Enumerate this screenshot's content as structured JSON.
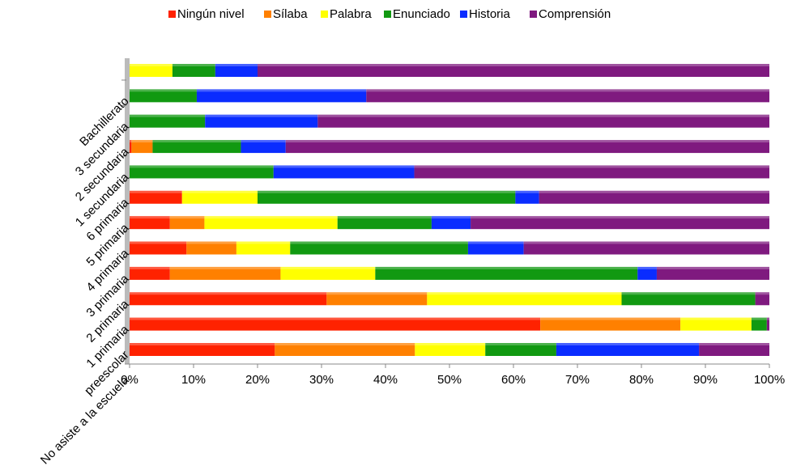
{
  "chart_data": {
    "type": "stacked-bar-horizontal",
    "categories": [
      "No asiste a la escuela",
      "preescolar",
      "1 primaria",
      "2 primaria",
      "3 primaria",
      "4 primaria",
      "5 primaria",
      "6 primaria",
      "1 secundaria",
      "2 secundaria",
      "3 secundaria",
      "Bachillerato"
    ],
    "series": [
      {
        "name": "Ningún nivel",
        "color": "#ff2200",
        "values": [
          22.7,
          64.2,
          30.8,
          6.3,
          8.9,
          6.3,
          8.2,
          0,
          0.3,
          0,
          0,
          0
        ]
      },
      {
        "name": "Sílaba",
        "color": "#ff8000",
        "values": [
          21.9,
          21.9,
          15.7,
          17.3,
          7.8,
          5.4,
          0,
          0,
          3.3,
          0,
          0,
          0
        ]
      },
      {
        "name": "Palabra",
        "color": "#ffff00",
        "values": [
          11.0,
          11.1,
          30.4,
          14.8,
          8.4,
          20.8,
          11.8,
          0,
          0,
          0,
          0,
          6.7
        ]
      },
      {
        "name": "Enunciado",
        "color": "#119911",
        "values": [
          11.1,
          2.4,
          20.9,
          41.0,
          27.8,
          14.7,
          40.3,
          22.5,
          13.8,
          11.8,
          10.5,
          6.7
        ]
      },
      {
        "name": "Historia",
        "color": "#0a2cff",
        "values": [
          22.3,
          0,
          0,
          3.0,
          8.7,
          6.1,
          3.7,
          22.0,
          7.0,
          17.6,
          26.5,
          6.6
        ]
      },
      {
        "name": "Comprensión",
        "color": "#7f1a7f",
        "values": [
          11.0,
          0.4,
          2.2,
          17.6,
          38.4,
          46.7,
          36.0,
          55.5,
          75.6,
          70.6,
          63.0,
          80.0
        ]
      }
    ],
    "xlim": [
      0,
      100
    ],
    "xticks": [
      {
        "value": 0,
        "label": "0%"
      },
      {
        "value": 10,
        "label": "10%"
      },
      {
        "value": 20,
        "label": "20%"
      },
      {
        "value": 30,
        "label": "30%"
      },
      {
        "value": 40,
        "label": "40%"
      },
      {
        "value": 50,
        "label": "50%"
      },
      {
        "value": 60,
        "label": "60%"
      },
      {
        "value": 70,
        "label": "70%"
      },
      {
        "value": 80,
        "label": "80%"
      },
      {
        "value": 90,
        "label": "90%"
      },
      {
        "value": 100,
        "label": "100%"
      }
    ],
    "legend": "top"
  }
}
